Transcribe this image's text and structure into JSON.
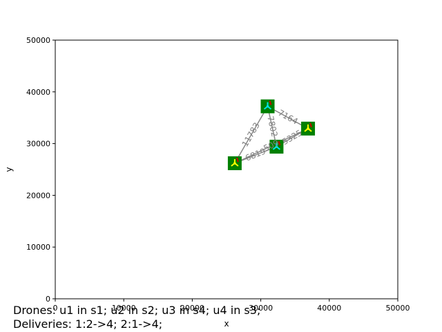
{
  "chart_data": {
    "type": "scatter",
    "title": "",
    "xlabel": "x",
    "ylabel": "y",
    "xlim": [
      0,
      50000
    ],
    "ylim": [
      0,
      50000
    ],
    "xticks": [
      "0",
      "10000",
      "20000",
      "30000",
      "40000",
      "50000"
    ],
    "yticks": [
      "0",
      "10000",
      "20000",
      "30000",
      "40000",
      "50000"
    ],
    "grid": false,
    "nodes": [
      {
        "id": "s1",
        "x": 26200,
        "y": 26200,
        "drone_color": "#ffff00"
      },
      {
        "id": "s2",
        "x": 32300,
        "y": 29400,
        "drone_color": "#00e5e5"
      },
      {
        "id": "s3",
        "x": 31000,
        "y": 37200,
        "drone_color": "#00e5e5"
      },
      {
        "id": "s4",
        "x": 36900,
        "y": 32900,
        "drone_color": "#ffff00"
      }
    ],
    "edges": [
      {
        "from": "s1",
        "to": "s3",
        "label": "11783"
      },
      {
        "from": "s1",
        "to": "s2",
        "label": "6819"
      },
      {
        "from": "s1",
        "to": "s4",
        "label": "509"
      },
      {
        "from": "s3",
        "to": "s2",
        "label": "7802"
      },
      {
        "from": "s3",
        "to": "s4",
        "label": "7164"
      },
      {
        "from": "s2",
        "to": "s4",
        "label": "5325"
      }
    ],
    "colors": {
      "node_fill": "#008000",
      "edge": "#888888",
      "marker": "#cc0000"
    }
  },
  "caption": {
    "line1": "Drones: u1 in s1; u2 in s2; u3 in s4; u4 in s3;",
    "line2": "Deliveries: 1:2->4; 2:1->4;"
  }
}
